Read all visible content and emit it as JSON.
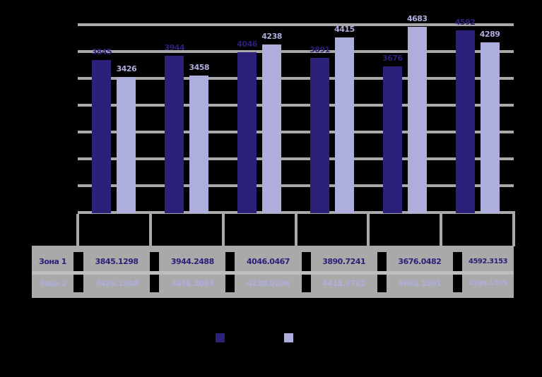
{
  "chart_data": {
    "type": "bar",
    "categories": [
      "",
      "",
      "",
      "",
      "",
      ""
    ],
    "series": [
      {
        "name": "Зона 1",
        "color": "#2B2178",
        "values": [
          3845.1298,
          3944.2488,
          4046.0467,
          3890.7241,
          3676.0482,
          4592.3153
        ],
        "labels": [
          "3845",
          "3944",
          "4046",
          "3891",
          "3676",
          "4592"
        ]
      },
      {
        "name": "Зона 2",
        "color": "#AEAEDD",
        "values": [
          3426.1348,
          3458.3083,
          4238.0208,
          4415.3782,
          4683.1591,
          4289.1505
        ],
        "labels": [
          "3426",
          "3458",
          "4238",
          "4415",
          "4683",
          "4289"
        ]
      }
    ],
    "ylim": [
      0,
      4735
    ],
    "gridlines": true,
    "legend_position": "bottom",
    "legend_labels_visible": false,
    "data_table": {
      "row_labels": [
        "Зона 1",
        "Зона 2"
      ],
      "rows": [
        [
          "3845.1298",
          "3944.2488",
          "4046.0467",
          "3890.7241",
          "3676.0482",
          "4592.3153"
        ],
        [
          "3426.1348",
          "3458.3083",
          "4238.0208",
          "4415.3782",
          "4683.1591",
          "4289.1505"
        ]
      ]
    }
  },
  "colors": {
    "background": "#000000",
    "grid": "#A9A9A9",
    "table_fill": "#A9A9A9",
    "row_divider": "#BDBDBD",
    "series1": "#2B2178",
    "series2": "#AEAEDD"
  }
}
